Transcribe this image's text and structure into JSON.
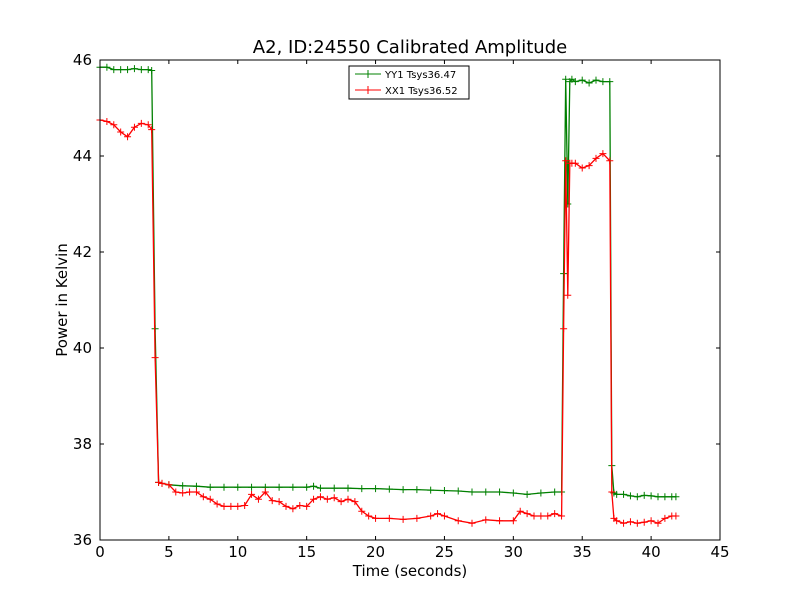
{
  "chart_data": {
    "type": "line",
    "title": "A2, ID:24550 Calibrated Amplitude",
    "xlabel": "Time (seconds)",
    "ylabel": "Power in Kelvin",
    "xlim": [
      0,
      45
    ],
    "ylim": [
      36,
      46
    ],
    "xticks": [
      "0",
      "5",
      "10",
      "15",
      "20",
      "25",
      "30",
      "35",
      "40",
      "45"
    ],
    "yticks": [
      "36",
      "38",
      "40",
      "42",
      "44",
      "46"
    ],
    "grid": false,
    "legend_position": "top-center",
    "series": [
      {
        "name": "YY1 Tsys36.47",
        "color": "#008000",
        "marker": "+",
        "x": [
          0.0,
          0.5,
          1.0,
          1.5,
          2.0,
          2.5,
          3.0,
          3.5,
          3.75,
          4.0,
          4.25,
          4.5,
          5.0,
          6.0,
          7.0,
          8.0,
          9.0,
          10.0,
          11.0,
          12.0,
          13.0,
          14.0,
          15.0,
          15.5,
          16.0,
          17.0,
          18.0,
          19.0,
          20.0,
          21.0,
          22.0,
          23.0,
          24.0,
          25.0,
          26.0,
          27.0,
          28.0,
          29.0,
          30.0,
          31.0,
          32.0,
          33.0,
          33.5,
          33.65,
          33.8,
          33.95,
          34.1,
          34.25,
          34.5,
          35.0,
          35.5,
          36.0,
          36.5,
          37.0,
          37.15,
          37.3,
          37.5,
          38.0,
          38.5,
          39.0,
          39.5,
          40.0,
          40.5,
          41.0,
          41.5,
          41.8
        ],
        "y": [
          45.85,
          45.85,
          45.8,
          45.8,
          45.8,
          45.82,
          45.8,
          45.8,
          45.78,
          40.4,
          37.2,
          37.18,
          37.15,
          37.13,
          37.12,
          37.1,
          37.1,
          37.1,
          37.1,
          37.1,
          37.1,
          37.1,
          37.1,
          37.12,
          37.08,
          37.08,
          37.08,
          37.07,
          37.07,
          37.06,
          37.05,
          37.05,
          37.04,
          37.03,
          37.02,
          37.0,
          37.0,
          37.0,
          36.98,
          36.95,
          36.98,
          37.0,
          37.0,
          41.55,
          45.6,
          43.0,
          45.55,
          45.6,
          45.55,
          45.58,
          45.52,
          45.58,
          45.55,
          45.55,
          37.55,
          36.98,
          36.95,
          36.95,
          36.92,
          36.9,
          36.93,
          36.92,
          36.9,
          36.9,
          36.9,
          36.9
        ]
      },
      {
        "name": "XX1 Tsys36.52",
        "color": "#ff0000",
        "marker": "+",
        "x": [
          0.0,
          0.5,
          1.0,
          1.5,
          2.0,
          2.5,
          3.0,
          3.5,
          3.75,
          4.0,
          4.25,
          4.5,
          5.0,
          5.5,
          6.0,
          6.5,
          7.0,
          7.5,
          8.0,
          8.5,
          9.0,
          9.5,
          10.0,
          10.5,
          11.0,
          11.5,
          12.0,
          12.5,
          13.0,
          13.5,
          14.0,
          14.5,
          15.0,
          15.5,
          16.0,
          16.5,
          17.0,
          17.5,
          18.0,
          18.5,
          19.0,
          19.5,
          20.0,
          21.0,
          22.0,
          23.0,
          24.0,
          24.5,
          25.0,
          26.0,
          27.0,
          28.0,
          29.0,
          30.0,
          30.5,
          31.0,
          31.5,
          32.0,
          32.5,
          33.0,
          33.5,
          33.65,
          33.8,
          33.95,
          34.1,
          34.25,
          34.5,
          35.0,
          35.5,
          36.0,
          36.5,
          37.0,
          37.15,
          37.3,
          37.5,
          38.0,
          38.5,
          39.0,
          39.5,
          40.0,
          40.5,
          41.0,
          41.5,
          41.8
        ],
        "y": [
          44.75,
          44.72,
          44.65,
          44.5,
          44.4,
          44.6,
          44.68,
          44.65,
          44.55,
          39.8,
          37.2,
          37.18,
          37.15,
          37.0,
          36.98,
          37.0,
          37.0,
          36.9,
          36.85,
          36.75,
          36.7,
          36.7,
          36.7,
          36.72,
          36.95,
          36.85,
          37.0,
          36.82,
          36.8,
          36.7,
          36.65,
          36.72,
          36.7,
          36.85,
          36.9,
          36.85,
          36.88,
          36.8,
          36.85,
          36.8,
          36.6,
          36.5,
          36.45,
          36.45,
          36.43,
          36.45,
          36.5,
          36.55,
          36.5,
          36.4,
          36.35,
          36.42,
          36.4,
          36.4,
          36.6,
          36.55,
          36.5,
          36.5,
          36.5,
          36.55,
          36.5,
          40.4,
          43.9,
          41.1,
          43.85,
          43.85,
          43.85,
          43.75,
          43.8,
          43.95,
          44.05,
          43.9,
          37.0,
          36.45,
          36.4,
          36.35,
          36.38,
          36.35,
          36.37,
          36.4,
          36.35,
          36.45,
          36.5,
          36.5
        ]
      }
    ]
  }
}
